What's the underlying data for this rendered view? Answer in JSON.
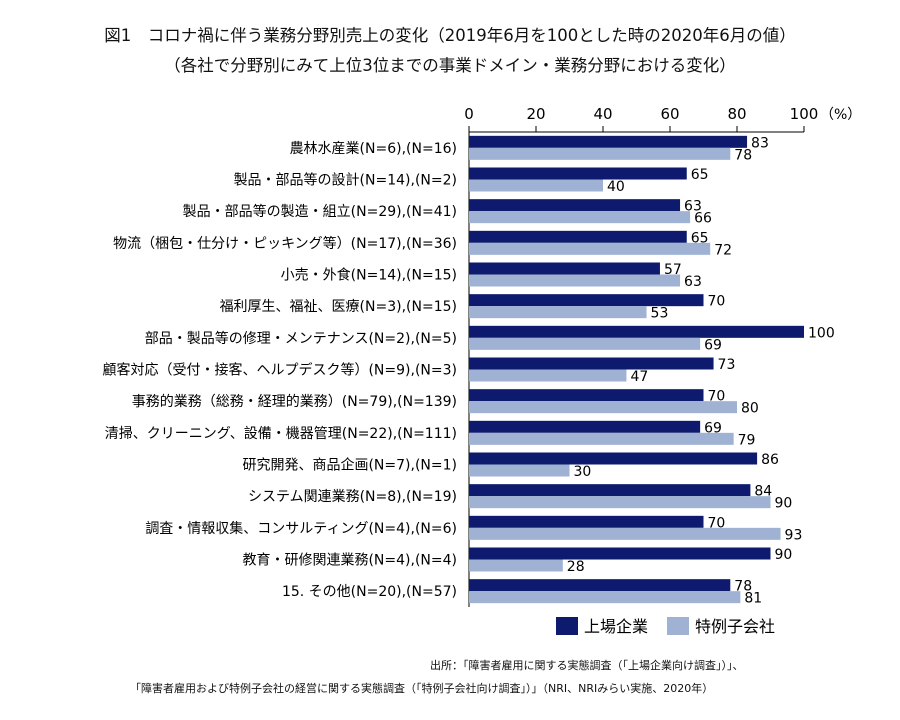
{
  "title": "図1　コロナ禍に伴う業務分野別売上の変化（2019年6月を100とした時の2020年6月の値）",
  "subtitle": "（各社で分野別にみて上位3位までの事業ドメイン・業務分野における変化）",
  "chart_data": {
    "type": "bar",
    "orientation": "horizontal",
    "categories": [
      "農林水産業(N=6),(N=16)",
      "製品・部品等の設計(N=14),(N=2)",
      "製品・部品等の製造・組立(N=29),(N=41)",
      "物流（梱包・仕分け・ピッキング等）(N=17),(N=36)",
      "小売・外食(N=14),(N=15)",
      "福利厚生、福祉、医療(N=3),(N=15)",
      "部品・製品等の修理・メンテナンス(N=2),(N=5)",
      "顧客対応（受付・接客、ヘルプデスク等）(N=9),(N=3)",
      "事務的業務（総務・経理的業務）(N=79),(N=139)",
      "清掃、クリーニング、設備・機器管理(N=22),(N=111)",
      "研究開発、商品企画(N=7),(N=1)",
      "システム関連業務(N=8),(N=19)",
      "調査・情報収集、コンサルティング(N=4),(N=6)",
      "教育・研修関連業務(N=4),(N=4)",
      "15. その他(N=20),(N=57)"
    ],
    "series": [
      {
        "name": "上場企業",
        "color": "#0d1a6e",
        "values": [
          83,
          65,
          63,
          65,
          57,
          70,
          100,
          73,
          70,
          69,
          86,
          84,
          70,
          90,
          78
        ]
      },
      {
        "name": "特例子会社",
        "color": "#9fb2d3",
        "values": [
          78,
          40,
          66,
          72,
          63,
          53,
          69,
          47,
          80,
          79,
          30,
          90,
          93,
          28,
          81
        ]
      }
    ],
    "xlim": [
      0,
      100
    ],
    "ticks": [
      0,
      20,
      40,
      60,
      80,
      100
    ],
    "unit_label": "（%）",
    "legend_position": "bottom-right",
    "grid": false
  },
  "source_line1": "出所：「障害者雇用に関する実態調査（「上場企業向け調査」）」、",
  "source_line2": "「障害者雇用および特例子会社の経営に関する実態調査（「特例子会社向け調査」）」（NRI、NRIみらい実施、2020年）"
}
